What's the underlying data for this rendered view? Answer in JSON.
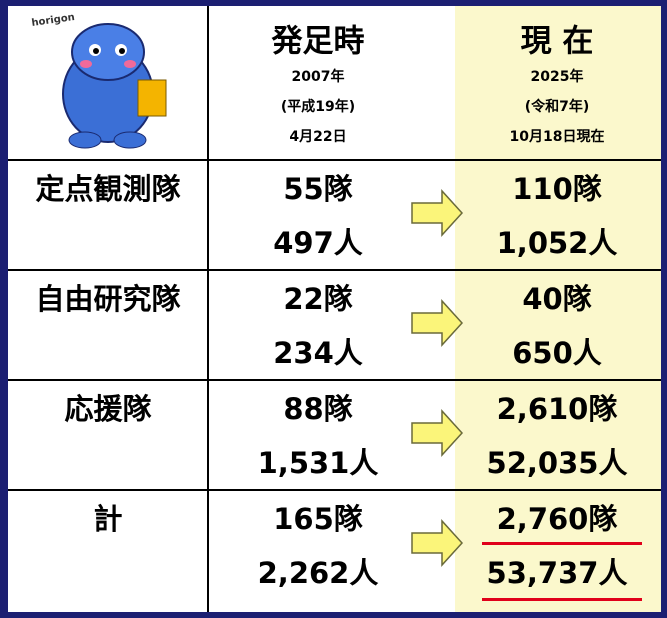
{
  "header": {
    "mascot_label": "horigon",
    "columns": [
      {
        "title": "発足時",
        "lines": [
          "2007年",
          "(平成19年)",
          "4月22日"
        ]
      },
      {
        "title": "現 在",
        "lines": [
          "2025年",
          "(令和7年)",
          "10月18日現在"
        ]
      }
    ]
  },
  "table": {
    "rows": [
      [
        "定点観測隊",
        "55隊",
        "497人",
        "110隊",
        "1,052人"
      ],
      [
        "自由研究隊",
        "22隊",
        "234人",
        "40隊",
        "650人"
      ],
      [
        "応援隊",
        "88隊",
        "1,531人",
        "2,610隊",
        "52,035人"
      ],
      [
        "計",
        "165隊",
        "2,262人",
        "2,760隊",
        "53,737人"
      ]
    ]
  }
}
